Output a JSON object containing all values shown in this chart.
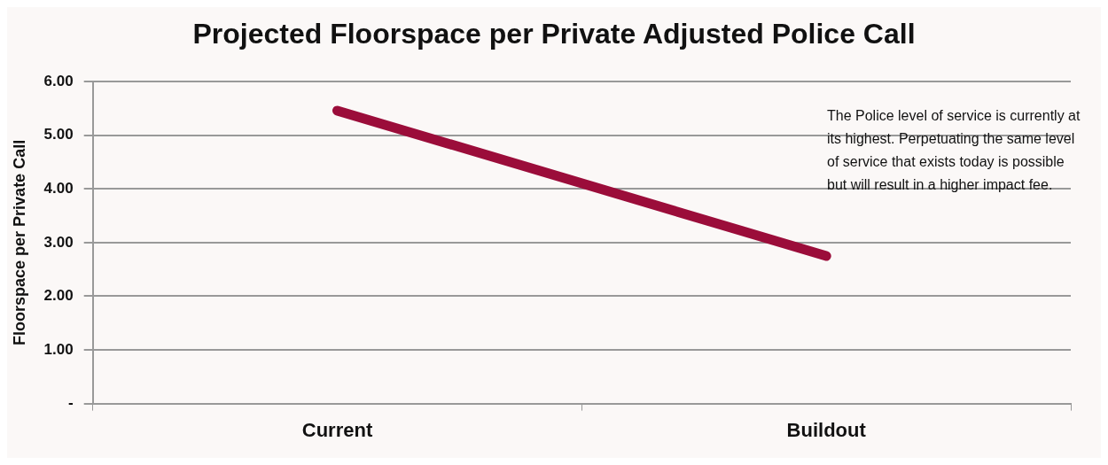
{
  "chart_data": {
    "type": "line",
    "title": "Projected Floorspace per Private Adjusted Police Call",
    "ylabel": "Floorspace per Private Call",
    "categories": [
      "Current",
      "Buildout"
    ],
    "series": [
      {
        "color": "#9b0d3a",
        "values": [
          5.46,
          2.75
        ]
      }
    ],
    "ylim": [
      0,
      6
    ],
    "yticks": [
      {
        "value": 0,
        "label": "-"
      },
      {
        "value": 1,
        "label": "1.00"
      },
      {
        "value": 2,
        "label": "2.00"
      },
      {
        "value": 3,
        "label": "3.00"
      },
      {
        "value": 4,
        "label": "4.00"
      },
      {
        "value": 5,
        "label": "5.00"
      },
      {
        "value": 6,
        "label": "6.00"
      }
    ],
    "grid": "y",
    "legend": false,
    "marker": "none",
    "line_style": "solid",
    "annotations": [
      "The Police level of service is currently at its highest.  Perpetuating the same level of service that exists today is possible but will result in a higher impact fee."
    ]
  }
}
